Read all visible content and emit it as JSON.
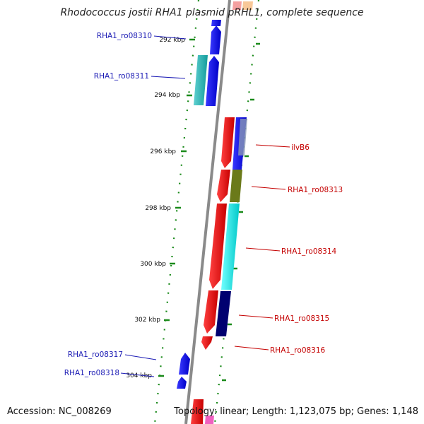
{
  "title": "Rhodococcus jostii RHA1 plasmid pRHL1, complete sequence",
  "accession": "Accession: NC_008269",
  "topology": "Topology: linear; Length: 1,123,075 bp; Genes: 1,148",
  "scale_labels": [
    "292 kbp",
    "294 kbp",
    "296 kbp",
    "298 kbp",
    "300 kbp",
    "302 kbp",
    "304 kbp"
  ],
  "genes_left": [
    "RHA1_ro08310",
    "RHA1_ro08311",
    "RHA1_ro08317",
    "RHA1_ro08318"
  ],
  "genes_right": [
    "ilvB6",
    "RHA1_ro08313",
    "RHA1_ro08314",
    "RHA1_ro08315",
    "RHA1_ro08316"
  ],
  "colors": {
    "backbone": "#8a8a8a",
    "forward_gene": "#0000ee",
    "reverse_gene": "#ee0000",
    "cyan_cog": "#00d8d8",
    "teal_cog": "#20b8b8",
    "olive_cog": "#6b7a1a",
    "navy_cog": "#000070",
    "tick": "#1a8a1a",
    "left_label": "#1a1ab4",
    "right_label": "#c40000"
  }
}
